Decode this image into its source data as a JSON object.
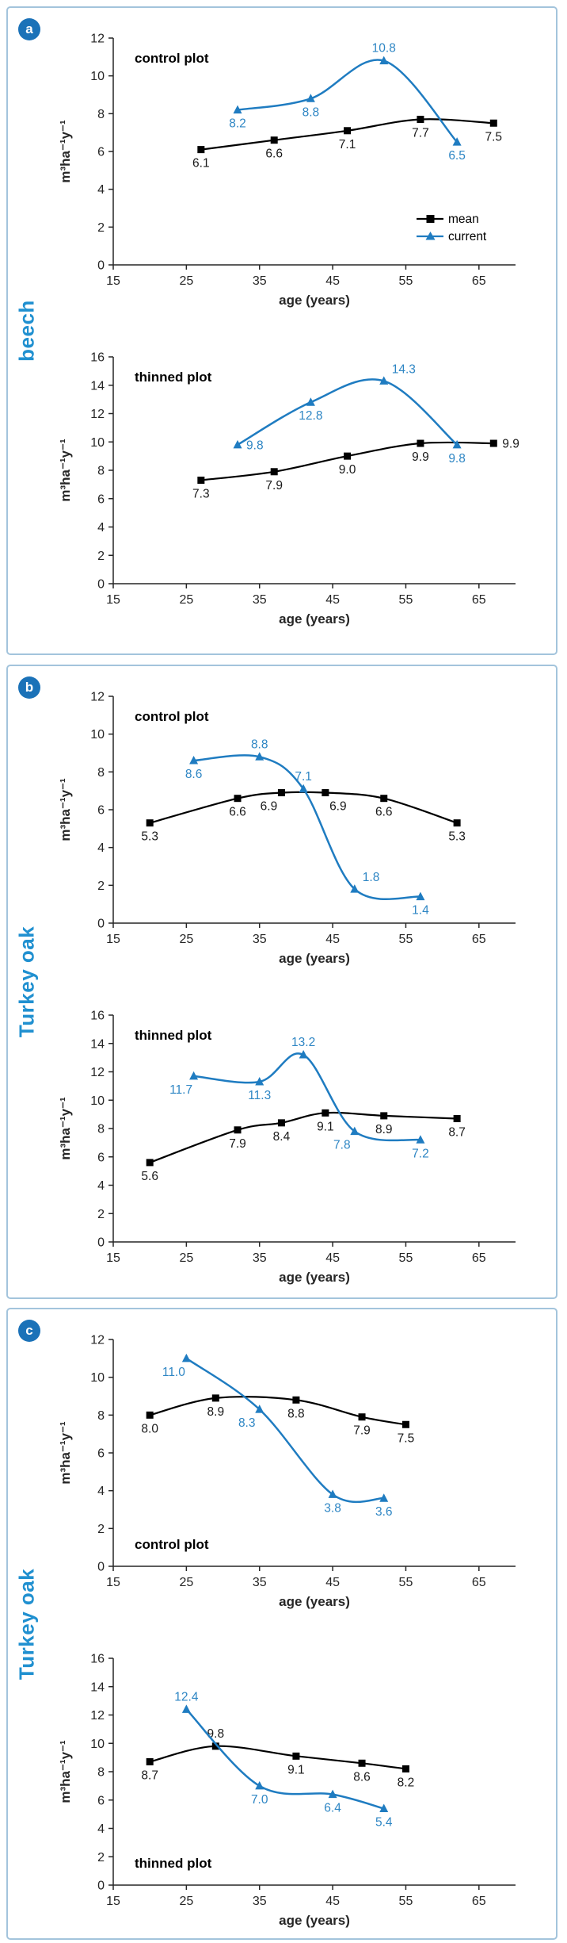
{
  "figure": {
    "xlabel": "age (years)",
    "ylabel": "m³ha⁻¹y⁻¹",
    "legend": {
      "mean": "mean",
      "current": "current"
    },
    "colors": {
      "mean_line": "#000000",
      "current_line": "#1F7CC1",
      "mean_label": "#1a1a1a",
      "current_label": "#2E86C4",
      "axis": "#262626",
      "panel_border": "#A3C4DC",
      "badge_bg": "#1B72B8",
      "species_text": "#2090D0"
    }
  },
  "panels": [
    {
      "badge": "a",
      "species": "beech"
    },
    {
      "badge": "b",
      "species": "Turkey oak"
    },
    {
      "badge": "c",
      "species": "Turkey oak"
    }
  ],
  "chart_data": [
    {
      "type": "line",
      "panel": "a",
      "title": "control plot",
      "title_pos": "top",
      "legend": true,
      "xlabel": "age (years)",
      "ylabel": "m³ha⁻¹y⁻¹",
      "xlim": [
        15,
        70
      ],
      "x_ticks": [
        15,
        25,
        35,
        45,
        55,
        65
      ],
      "ylim": [
        0,
        12
      ],
      "y_tick_step": 2,
      "series": [
        {
          "name": "mean",
          "marker": "square",
          "x": [
            27,
            37,
            47,
            57,
            67
          ],
          "y": [
            6.1,
            6.6,
            7.1,
            7.7,
            7.5
          ],
          "labels": [
            "6.1",
            "6.6",
            "7.1",
            "7.7",
            "7.5"
          ],
          "label_pos": [
            "b",
            "b",
            "b",
            "b",
            "b"
          ]
        },
        {
          "name": "current",
          "marker": "triangle",
          "x": [
            32,
            42,
            52,
            62
          ],
          "y": [
            8.2,
            8.8,
            10.8,
            6.5
          ],
          "labels": [
            "8.2",
            "8.8",
            "10.8",
            "6.5"
          ],
          "label_pos": [
            "b",
            "b",
            "a",
            "b"
          ]
        }
      ]
    },
    {
      "type": "line",
      "panel": "a",
      "title": "thinned plot",
      "title_pos": "top",
      "legend": false,
      "xlabel": "age (years)",
      "ylabel": "m³ha⁻¹y⁻¹",
      "xlim": [
        15,
        70
      ],
      "x_ticks": [
        15,
        25,
        35,
        45,
        55,
        65
      ],
      "ylim": [
        0,
        16
      ],
      "y_tick_step": 2,
      "series": [
        {
          "name": "mean",
          "marker": "square",
          "x": [
            27,
            37,
            47,
            57,
            67
          ],
          "y": [
            7.3,
            7.9,
            9.0,
            9.9,
            9.9
          ],
          "labels": [
            "7.3",
            "7.9",
            "9.0",
            "9.9",
            "9.9"
          ],
          "label_pos": [
            "b",
            "b",
            "b",
            "b",
            "r"
          ]
        },
        {
          "name": "current",
          "marker": "triangle",
          "x": [
            32,
            42,
            52,
            62
          ],
          "y": [
            9.8,
            12.8,
            14.3,
            9.8
          ],
          "labels": [
            "9.8",
            "12.8",
            "14.3",
            "9.8"
          ],
          "label_pos": [
            "r",
            "b",
            "ar",
            "b"
          ]
        }
      ]
    },
    {
      "type": "line",
      "panel": "b",
      "title": "control plot",
      "title_pos": "top",
      "legend": false,
      "xlabel": "age (years)",
      "ylabel": "m³ha⁻¹y⁻¹",
      "xlim": [
        15,
        70
      ],
      "x_ticks": [
        15,
        25,
        35,
        45,
        55,
        65
      ],
      "ylim": [
        0,
        12
      ],
      "y_tick_step": 2,
      "series": [
        {
          "name": "mean",
          "marker": "square",
          "x": [
            20,
            32,
            38,
            44,
            52,
            62
          ],
          "y": [
            5.3,
            6.6,
            6.9,
            6.9,
            6.6,
            5.3
          ],
          "labels": [
            "5.3",
            "6.6",
            "6.9",
            "6.9",
            "6.6",
            "5.3"
          ],
          "label_pos": [
            "b",
            "b",
            "bl",
            "br",
            "b",
            "b"
          ]
        },
        {
          "name": "current",
          "marker": "triangle",
          "x": [
            26,
            35,
            41,
            48,
            57
          ],
          "y": [
            8.6,
            8.8,
            7.1,
            1.8,
            1.4
          ],
          "labels": [
            "8.6",
            "8.8",
            "7.1",
            "1.8",
            "1.4"
          ],
          "label_pos": [
            "b",
            "a",
            "a",
            "ar",
            "b"
          ]
        }
      ]
    },
    {
      "type": "line",
      "panel": "b",
      "title": "thinned plot",
      "title_pos": "top",
      "legend": false,
      "xlabel": "age (years)",
      "ylabel": "m³ha⁻¹y⁻¹",
      "xlim": [
        15,
        70
      ],
      "x_ticks": [
        15,
        25,
        35,
        45,
        55,
        65
      ],
      "ylim": [
        0,
        16
      ],
      "y_tick_step": 2,
      "series": [
        {
          "name": "mean",
          "marker": "square",
          "x": [
            20,
            32,
            38,
            44,
            52,
            62
          ],
          "y": [
            5.6,
            7.9,
            8.4,
            9.1,
            8.9,
            8.7
          ],
          "labels": [
            "5.6",
            "7.9",
            "8.4",
            "9.1",
            "8.9",
            "8.7"
          ],
          "label_pos": [
            "b",
            "b",
            "b",
            "b",
            "b",
            "b"
          ]
        },
        {
          "name": "current",
          "marker": "triangle",
          "x": [
            26,
            35,
            41,
            48,
            57
          ],
          "y": [
            11.7,
            11.3,
            13.2,
            7.8,
            7.2
          ],
          "labels": [
            "11.7",
            "11.3",
            "13.2",
            "7.8",
            "7.2"
          ],
          "label_pos": [
            "bl",
            "b",
            "a",
            "bl",
            "b"
          ]
        }
      ]
    },
    {
      "type": "line",
      "panel": "c",
      "title": "control plot",
      "title_pos": "bottom",
      "legend": false,
      "xlabel": "age (years)",
      "ylabel": "m³ha⁻¹y⁻¹",
      "xlim": [
        15,
        70
      ],
      "x_ticks": [
        15,
        25,
        35,
        45,
        55,
        65
      ],
      "ylim": [
        0,
        12
      ],
      "y_tick_step": 2,
      "series": [
        {
          "name": "mean",
          "marker": "square",
          "x": [
            20,
            29,
            40,
            49,
            55
          ],
          "y": [
            8.0,
            8.9,
            8.8,
            7.9,
            7.5
          ],
          "labels": [
            "8.0",
            "8.9",
            "8.8",
            "7.9",
            "7.5"
          ],
          "label_pos": [
            "b",
            "b",
            "b",
            "b",
            "b"
          ]
        },
        {
          "name": "current",
          "marker": "triangle",
          "x": [
            25,
            35,
            45,
            52
          ],
          "y": [
            11.0,
            8.3,
            3.8,
            3.6
          ],
          "labels": [
            "11.0",
            "8.3",
            "3.8",
            "3.6"
          ],
          "label_pos": [
            "bl",
            "bl",
            "b",
            "b"
          ]
        }
      ]
    },
    {
      "type": "line",
      "panel": "c",
      "title": "thinned plot",
      "title_pos": "bottom",
      "legend": false,
      "xlabel": "age (years)",
      "ylabel": "m³ha⁻¹y⁻¹",
      "xlim": [
        15,
        70
      ],
      "x_ticks": [
        15,
        25,
        35,
        45,
        55,
        65
      ],
      "ylim": [
        0,
        16
      ],
      "y_tick_step": 2,
      "series": [
        {
          "name": "mean",
          "marker": "square",
          "x": [
            20,
            29,
            40,
            49,
            55
          ],
          "y": [
            8.7,
            9.8,
            9.1,
            8.6,
            8.2
          ],
          "labels": [
            "8.7",
            "9.8",
            "9.1",
            "8.6",
            "8.2"
          ],
          "label_pos": [
            "b",
            "a",
            "b",
            "b",
            "b"
          ]
        },
        {
          "name": "current",
          "marker": "triangle",
          "x": [
            25,
            35,
            45,
            52
          ],
          "y": [
            12.4,
            7.0,
            6.4,
            5.4
          ],
          "labels": [
            "12.4",
            "7.0",
            "6.4",
            "5.4"
          ],
          "label_pos": [
            "a",
            "b",
            "b",
            "b"
          ]
        }
      ]
    }
  ]
}
